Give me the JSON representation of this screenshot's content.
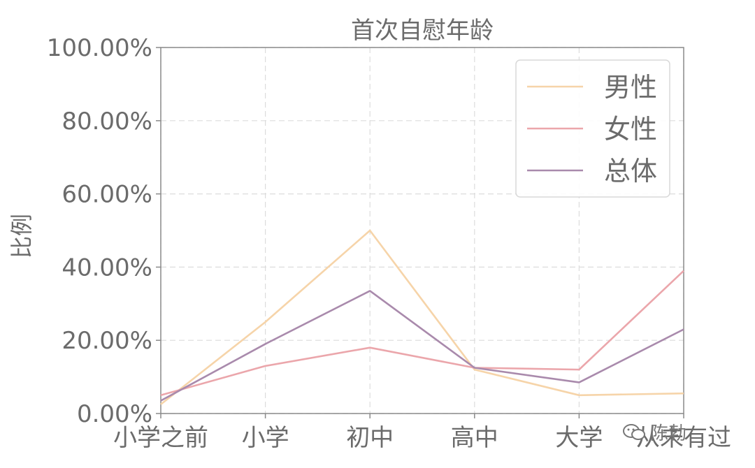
{
  "chart_data": {
    "type": "line",
    "title": "首次自慰年龄",
    "xlabel": "",
    "ylabel": "比例",
    "categories": [
      "小学之前",
      "小学",
      "初中",
      "高中",
      "大学",
      "从未有过"
    ],
    "ylim": [
      0,
      1.0
    ],
    "yticks": [
      "0.00%",
      "20.00%",
      "40.00%",
      "60.00%",
      "80.00%",
      "100.00%"
    ],
    "grid": true,
    "legend_position": "top-right",
    "series": [
      {
        "name": "男性",
        "color": "#f6d4a9",
        "values": [
          0.025,
          0.25,
          0.5,
          0.12,
          0.05,
          0.055
        ]
      },
      {
        "name": "女性",
        "color": "#eba6ab",
        "values": [
          0.05,
          0.13,
          0.18,
          0.125,
          0.12,
          0.39
        ]
      },
      {
        "name": "总体",
        "color": "#a98aac",
        "values": [
          0.035,
          0.19,
          0.335,
          0.125,
          0.085,
          0.23
        ]
      }
    ]
  },
  "watermark": {
    "text": "陈勃"
  }
}
